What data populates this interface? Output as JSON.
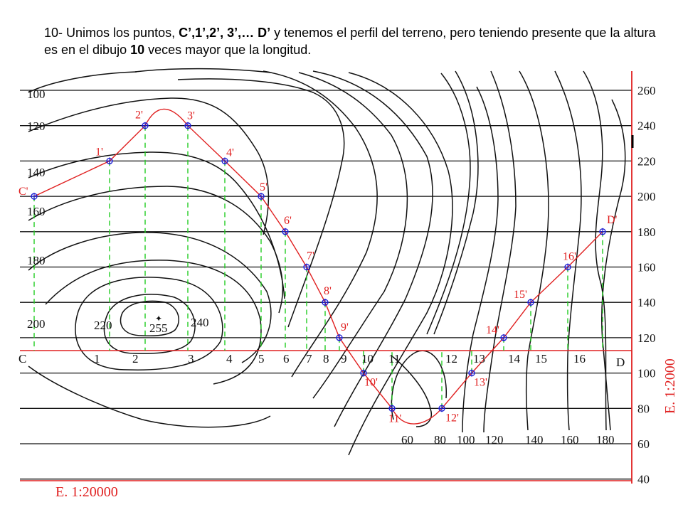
{
  "caption": {
    "t1": "10- Unimos los puntos, ",
    "b1": "C’,1’,2’, 3’,… D’",
    "t2": " y tenemos el perfil del terreno, pero teniendo presente que la altura es en el dibujo ",
    "b2": "10",
    "t3": " veces mayor que la longitud."
  },
  "right_axis_labels": [
    "260",
    "240",
    "220",
    "200",
    "180",
    "160",
    "140",
    "120",
    "100",
    "80",
    "60",
    "40"
  ],
  "left_contour_labels": [
    "100",
    "120",
    "140",
    "160",
    "180",
    "200"
  ],
  "summit_labels": [
    "220",
    "255",
    "240"
  ],
  "bottom_contour_labels": [
    "60",
    "80",
    "100",
    "120",
    "140",
    "160",
    "180"
  ],
  "baseline_labels": [
    "C",
    "1",
    "2",
    "3",
    "4",
    "5",
    "6",
    "7",
    "8",
    "9",
    "10",
    "11",
    "12",
    "13",
    "14",
    "15",
    "16",
    "D"
  ],
  "profile_point_labels": [
    "C'",
    "1'",
    "2'",
    "3'",
    "4'",
    "5'",
    "6'",
    "7'",
    "8'",
    "9'",
    "10'",
    "11'",
    "12'",
    "13'",
    "14'",
    "15'",
    "16'",
    "D'"
  ],
  "profile_elevations": [
    200,
    220,
    240,
    240,
    220,
    200,
    180,
    160,
    140,
    120,
    100,
    80,
    80,
    100,
    120,
    140,
    160,
    180
  ],
  "vertical_scale": "E. 1:2000",
  "horizontal_scale": "E. 1:20000",
  "colors": {
    "profile": "#e02020",
    "marker": "#1a1ad0",
    "projection": "#22cc22",
    "scale": "#e02020"
  }
}
